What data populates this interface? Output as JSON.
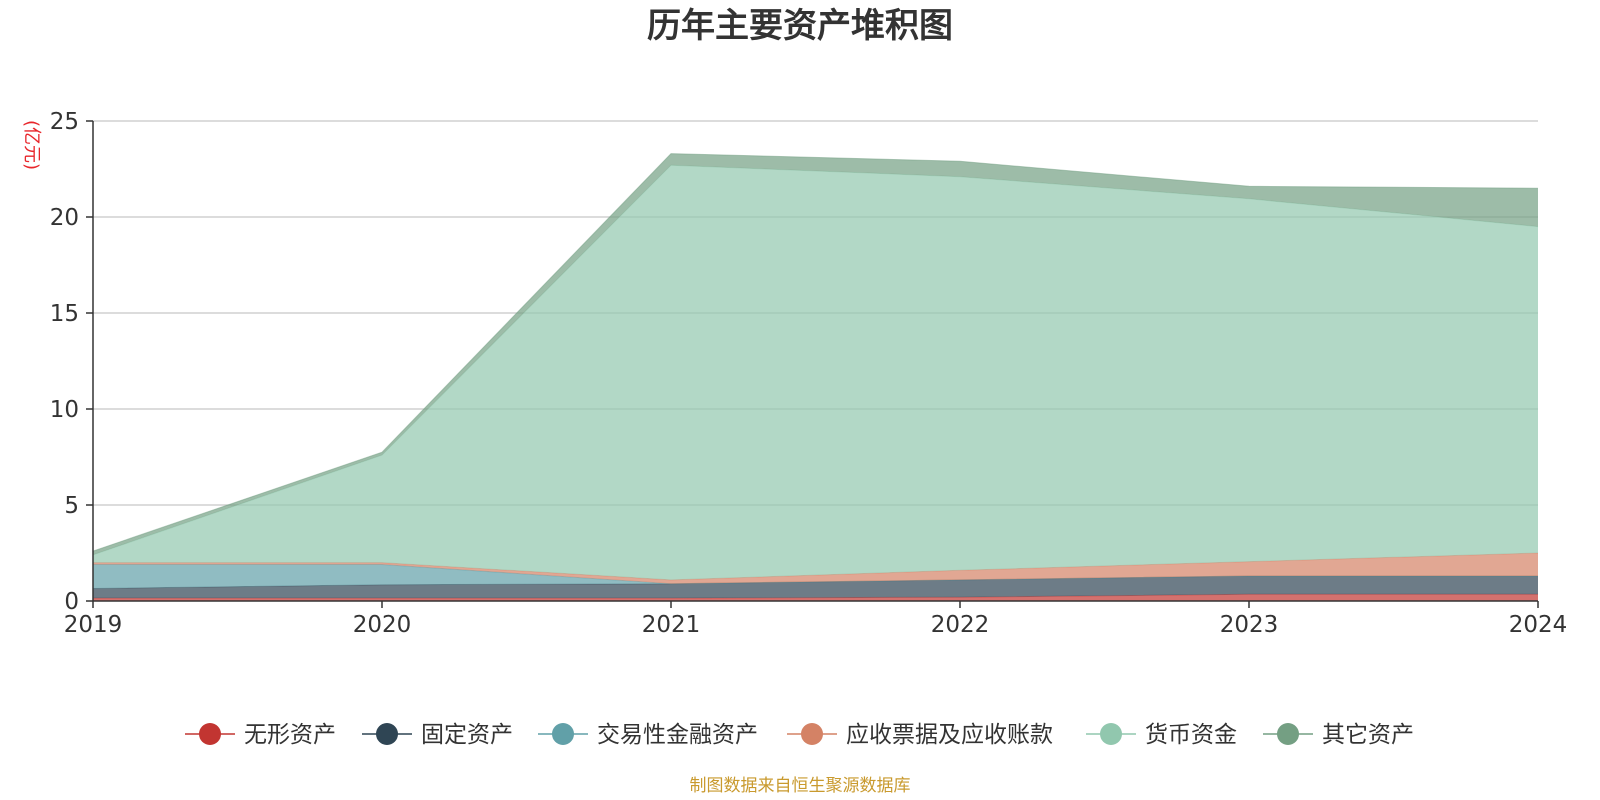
{
  "chart_data": {
    "type": "area",
    "stacked": true,
    "title": "历年主要资产堆积图",
    "unit_label": "(亿元)",
    "x": [
      "2019",
      "2020",
      "2021",
      "2022",
      "2023",
      "2024"
    ],
    "ylim": [
      0,
      25
    ],
    "yticks": [
      "0",
      "5",
      "10",
      "15",
      "20",
      "25"
    ],
    "grid": true,
    "legend_position": "bottom",
    "series": [
      {
        "name": "无形资产",
        "color": "#c23531",
        "values": [
          0.15,
          0.15,
          0.15,
          0.2,
          0.35,
          0.35
        ]
      },
      {
        "name": "固定资产",
        "color": "#2f4554",
        "values": [
          0.5,
          0.7,
          0.75,
          0.9,
          0.95,
          0.95
        ]
      },
      {
        "name": "交易性金融资产",
        "color": "#61a0a8",
        "values": [
          1.25,
          1.05,
          0.0,
          0.0,
          0.0,
          0.0
        ]
      },
      {
        "name": "应收票据及应收账款",
        "color": "#d48265",
        "values": [
          0.1,
          0.1,
          0.2,
          0.5,
          0.75,
          1.2
        ]
      },
      {
        "name": "货币资金",
        "color": "#91c7ae",
        "values": [
          0.4,
          5.6,
          21.6,
          20.5,
          18.9,
          17.0
        ]
      },
      {
        "name": "其它资产",
        "color": "#749f83",
        "values": [
          0.2,
          0.15,
          0.6,
          0.8,
          0.65,
          2.0
        ]
      }
    ]
  },
  "source_note": "制图数据来自恒生聚源数据库"
}
